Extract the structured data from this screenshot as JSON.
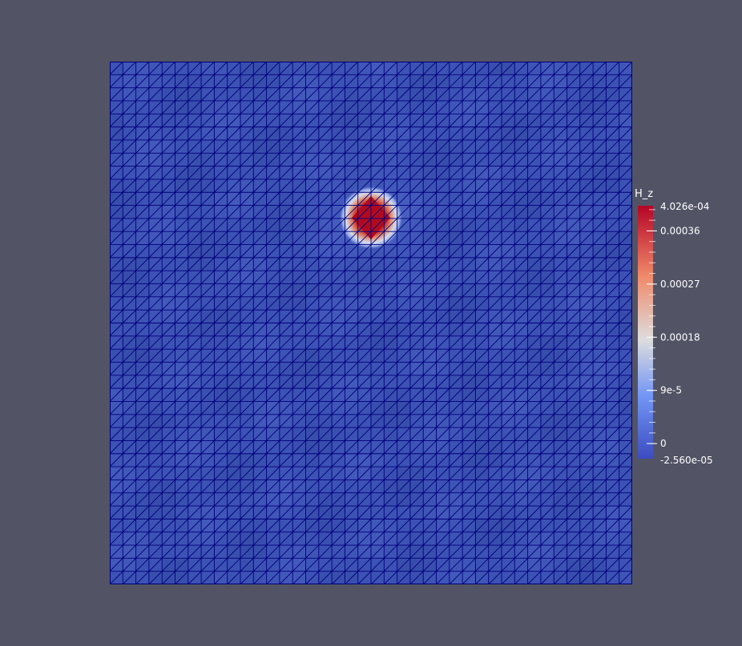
{
  "scene": {
    "background_color": "#525466",
    "mesh": {
      "cells_per_side": 40,
      "edge_color": "#00007a",
      "base_color": "#3c52b4",
      "peak_color": "#b40a23"
    },
    "field_peak": {
      "value": 0.0004026
    }
  },
  "colorbar": {
    "title": "H_z",
    "max_label": "4.026e-04",
    "min_label": "-2.560e-05",
    "range": [
      -2.56e-05,
      0.0004026
    ],
    "colormap": [
      "#3b4cc0",
      "#7396f5",
      "#dddddd",
      "#f08a6b",
      "#b40426"
    ],
    "ticks": [
      {
        "value": 0.00036,
        "label": "0.00036"
      },
      {
        "value": 0.00027,
        "label": "0.00027"
      },
      {
        "value": 0.00018,
        "label": "0.00018"
      },
      {
        "value": 9e-05,
        "label": "9e-5"
      },
      {
        "value": 0,
        "label": "0"
      }
    ]
  }
}
